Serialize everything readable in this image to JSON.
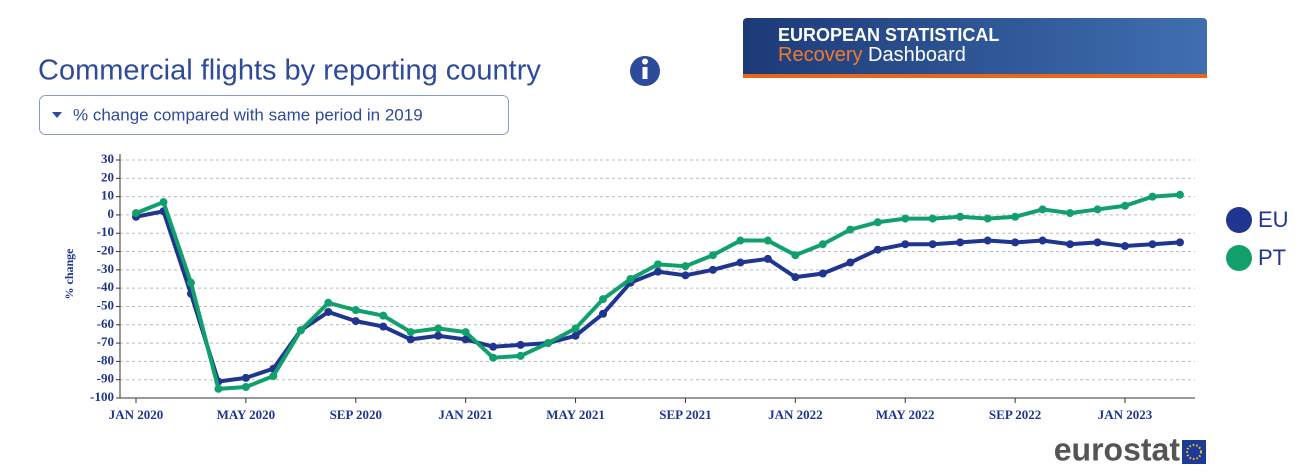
{
  "header": {
    "title": "Commercial flights by reporting country",
    "dropdown": "% change compared with same period in 2019",
    "banner_line1": "EUROPEAN STATISTICAL",
    "banner_line2a": "Recovery",
    "banner_line2b": "Dashboard",
    "footer_logo": "eurostat"
  },
  "chart_data": {
    "type": "line",
    "ylabel": "% change",
    "categories": [
      "JAN 2020",
      null,
      null,
      null,
      "MAY 2020",
      null,
      null,
      null,
      "SEP 2020",
      null,
      null,
      null,
      "JAN 2021",
      null,
      null,
      null,
      "MAY 2021",
      null,
      null,
      null,
      "SEP 2021",
      null,
      null,
      null,
      "JAN 2022",
      null,
      null,
      null,
      "MAY 2022",
      null,
      null,
      null,
      "SEP 2022",
      null,
      null,
      null,
      "JAN 2023",
      null,
      null
    ],
    "series": [
      {
        "name": "EU",
        "color": "#1f3590",
        "values": [
          -1,
          2,
          -43,
          -91,
          -89,
          -84,
          -63,
          -53,
          -58,
          -61,
          -68,
          -66,
          -68,
          -72,
          -71,
          -70,
          -66,
          -54,
          -37,
          -31,
          -33,
          -30,
          -26,
          -24,
          -34,
          -32,
          -26,
          -19,
          -16,
          -16,
          -15,
          -14,
          -15,
          -14,
          -16,
          -15,
          -17,
          -16,
          -15
        ]
      },
      {
        "name": "PT",
        "color": "#11a06b",
        "values": [
          1,
          7,
          -37,
          -95,
          -94,
          -88,
          -63,
          -48,
          -52,
          -55,
          -64,
          -62,
          -64,
          -78,
          -77,
          -70,
          -62,
          -46,
          -35,
          -27,
          -28,
          -22,
          -14,
          -14,
          -22,
          -16,
          -8,
          -4,
          -2,
          -2,
          -1,
          -2,
          -1,
          3,
          1,
          3,
          5,
          10,
          11
        ]
      }
    ],
    "ylim": [
      -100,
      30
    ],
    "yticks": [
      -100,
      -90,
      -80,
      -70,
      -60,
      -50,
      -40,
      -30,
      -20,
      -10,
      0,
      10,
      20,
      30
    ],
    "grid": true,
    "legend": "right"
  }
}
